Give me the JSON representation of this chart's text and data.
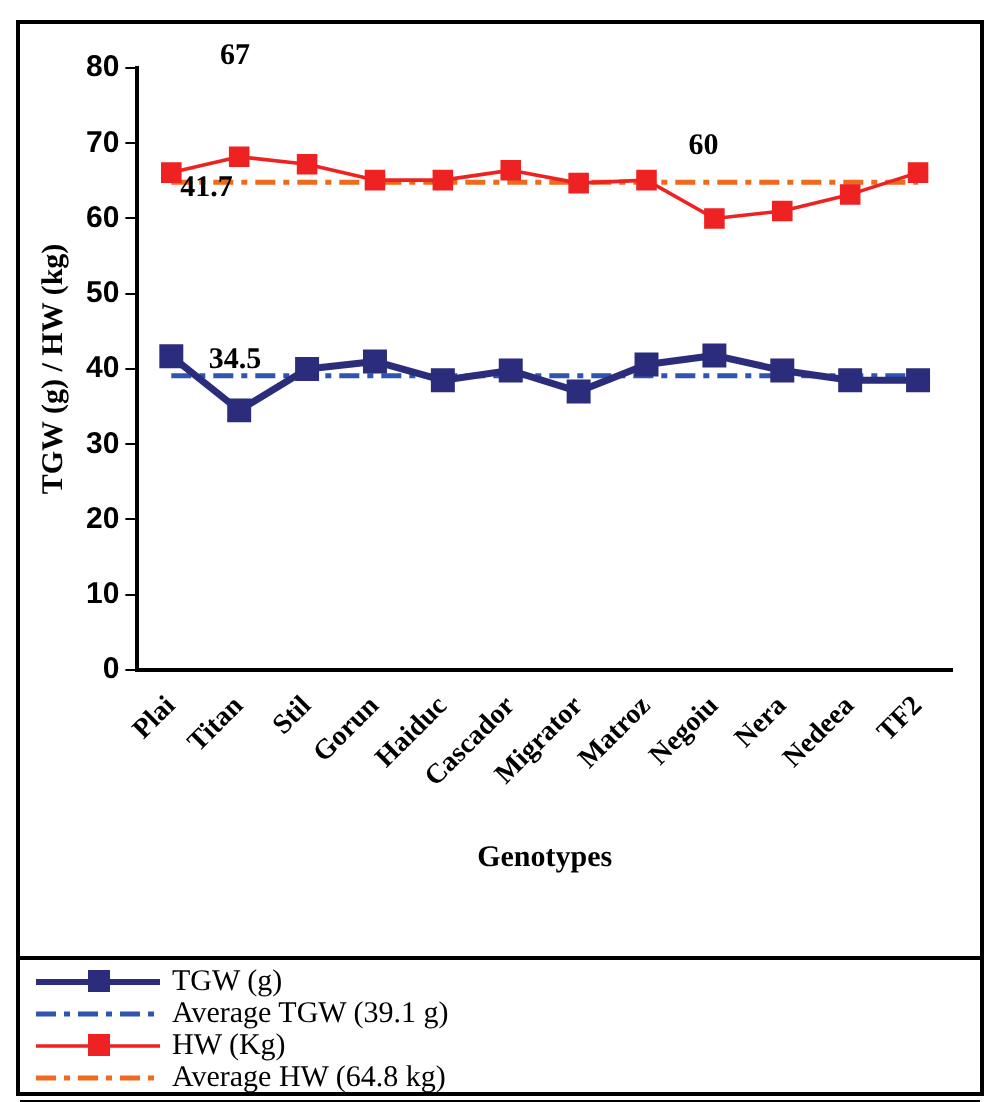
{
  "chart_data": {
    "type": "line",
    "xlabel": "Genotypes",
    "ylabel": "TGW (g) / HW (kg)",
    "categories": [
      "Plai",
      "Titan",
      "Stil",
      "Gorun",
      "Haiduc",
      "Cascador",
      "Migrator",
      "Matroz",
      "Negoiu",
      "Nera",
      "Nedeea",
      "TF2"
    ],
    "series": [
      {
        "name": "TGW (g)",
        "color": "#2b2d7c",
        "values": [
          41.7,
          34.5,
          40,
          41,
          38.5,
          39.8,
          37,
          40.6,
          41.8,
          39.8,
          38.5,
          38.5
        ]
      },
      {
        "name": "HW (Kg)",
        "color": "#ee2222",
        "values": [
          66.1,
          68.2,
          67.2,
          65.1,
          65.1,
          66.4,
          64.7,
          65.1,
          60,
          61,
          63.2,
          66.1
        ]
      }
    ],
    "ref_lines": [
      {
        "axis": "y",
        "value": 39.1,
        "label": "Average TGW (39.1 g)",
        "color": "#2f55b0",
        "line_style": "dashed"
      },
      {
        "axis": "y",
        "value": 64.8,
        "label": "Average HW (64.8 kg)",
        "color": "#f06a1e",
        "line_style": "dashed"
      }
    ],
    "annotations": [
      "67",
      "41.7",
      "34.5",
      "60"
    ],
    "ylim": [
      0,
      80
    ],
    "yticks": [
      0,
      10,
      20,
      30,
      40,
      50,
      60,
      70,
      80
    ],
    "grid": false,
    "legend": "bottom",
    "marker": "square",
    "line_style": "solid"
  }
}
